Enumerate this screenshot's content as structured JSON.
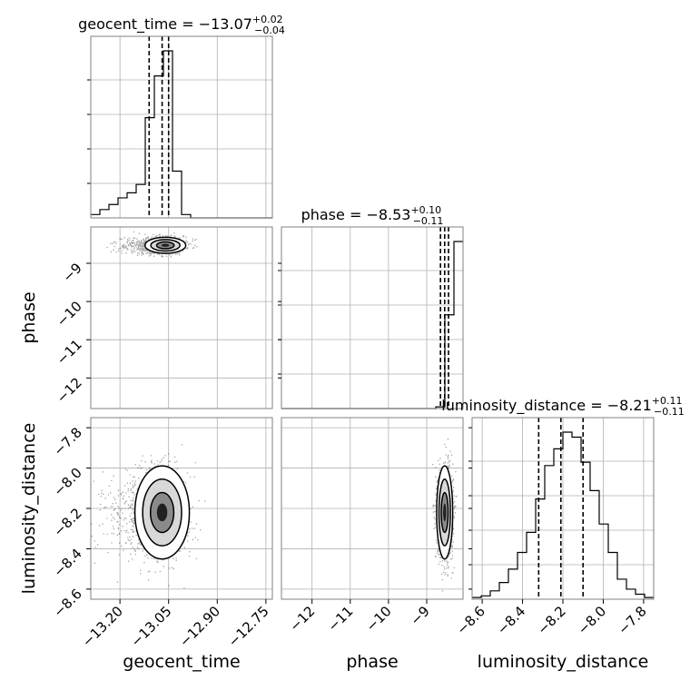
{
  "chart_data": {
    "type": "corner",
    "parameters": [
      {
        "name": "geocent_time",
        "range": [
          -13.29,
          -12.73
        ],
        "ticks": [
          "-13.20",
          "-13.05",
          "-12.90",
          "-12.75"
        ],
        "tick_values": [
          -13.2,
          -13.05,
          -12.9,
          -12.75
        ],
        "title_text": "geocent_time = −13.07",
        "title_plus": "+0.02",
        "title_minus": "−0.04",
        "median": -13.07,
        "err_plus": 0.02,
        "err_minus": 0.04,
        "quantiles": [
          -13.11,
          -13.07,
          -13.05
        ],
        "hist": [
          0.02,
          0.05,
          0.08,
          0.12,
          0.15,
          0.2,
          0.6,
          0.85,
          1.0,
          0.28,
          0.02,
          0,
          0,
          0,
          0,
          0,
          0,
          0,
          0,
          0
        ]
      },
      {
        "name": "phase",
        "range": [
          -12.8,
          -8.05
        ],
        "ticks": [
          "-12",
          "-11",
          "-10",
          "-9"
        ],
        "tick_values": [
          -12,
          -11,
          -10,
          -9
        ],
        "title_text": "phase = −8.53",
        "title_plus": "+0.10",
        "title_minus": "−0.11",
        "median": -8.53,
        "err_plus": 0.1,
        "err_minus": 0.11,
        "quantiles": [
          -8.64,
          -8.53,
          -8.43
        ],
        "hist": [
          0,
          0,
          0,
          0,
          0,
          0,
          0,
          0,
          0,
          0,
          0,
          0,
          0,
          0,
          0,
          0,
          0,
          0.01,
          0.55,
          0.98
        ]
      },
      {
        "name": "luminosity_distance",
        "range": [
          -8.65,
          -7.75
        ],
        "ticks": [
          "-8.6",
          "-8.4",
          "-8.2",
          "-8.0",
          "-7.8"
        ],
        "tick_values": [
          -8.6,
          -8.4,
          -8.2,
          -8.0,
          -7.8
        ],
        "title_text": "luminosity_distance = −8.21",
        "title_plus": "+0.11",
        "title_minus": "−0.11",
        "median": -8.21,
        "err_plus": 0.11,
        "err_minus": 0.11,
        "quantiles": [
          -8.32,
          -8.21,
          -8.1
        ],
        "hist": [
          0.01,
          0.02,
          0.05,
          0.1,
          0.18,
          0.28,
          0.4,
          0.6,
          0.8,
          0.9,
          1.0,
          0.97,
          0.82,
          0.65,
          0.45,
          0.28,
          0.12,
          0.06,
          0.03,
          0.01
        ]
      }
    ],
    "pairs": [
      {
        "x": "geocent_time",
        "y": "phase",
        "mean": [
          -13.06,
          -8.53
        ],
        "sd": [
          0.03,
          0.1
        ]
      },
      {
        "x": "geocent_time",
        "y": "luminosity_distance",
        "mean": [
          -13.07,
          -8.22
        ],
        "sd": [
          0.04,
          0.11
        ]
      },
      {
        "x": "phase",
        "y": "luminosity_distance",
        "mean": [
          -8.53,
          -8.22
        ],
        "sd": [
          0.1,
          0.11
        ]
      }
    ],
    "grid": true
  }
}
